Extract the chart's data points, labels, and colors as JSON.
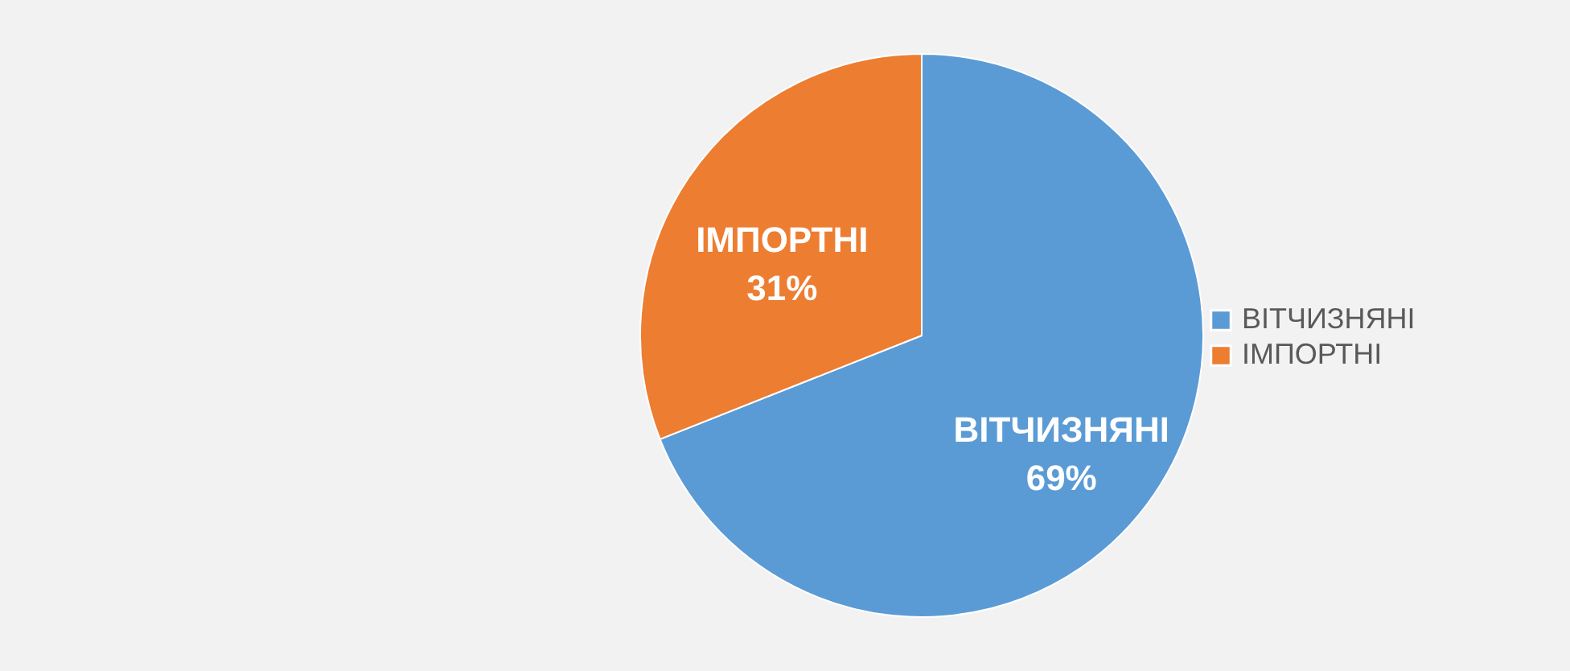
{
  "chart_data": {
    "type": "pie",
    "categories": [
      "ВІТЧИЗНЯНІ",
      "ІМПОРТНІ"
    ],
    "values": [
      69,
      31
    ],
    "colors": [
      "#5b9bd5",
      "#ed7d31"
    ],
    "value_labels": [
      "69%",
      "31%"
    ],
    "legend": "right"
  }
}
